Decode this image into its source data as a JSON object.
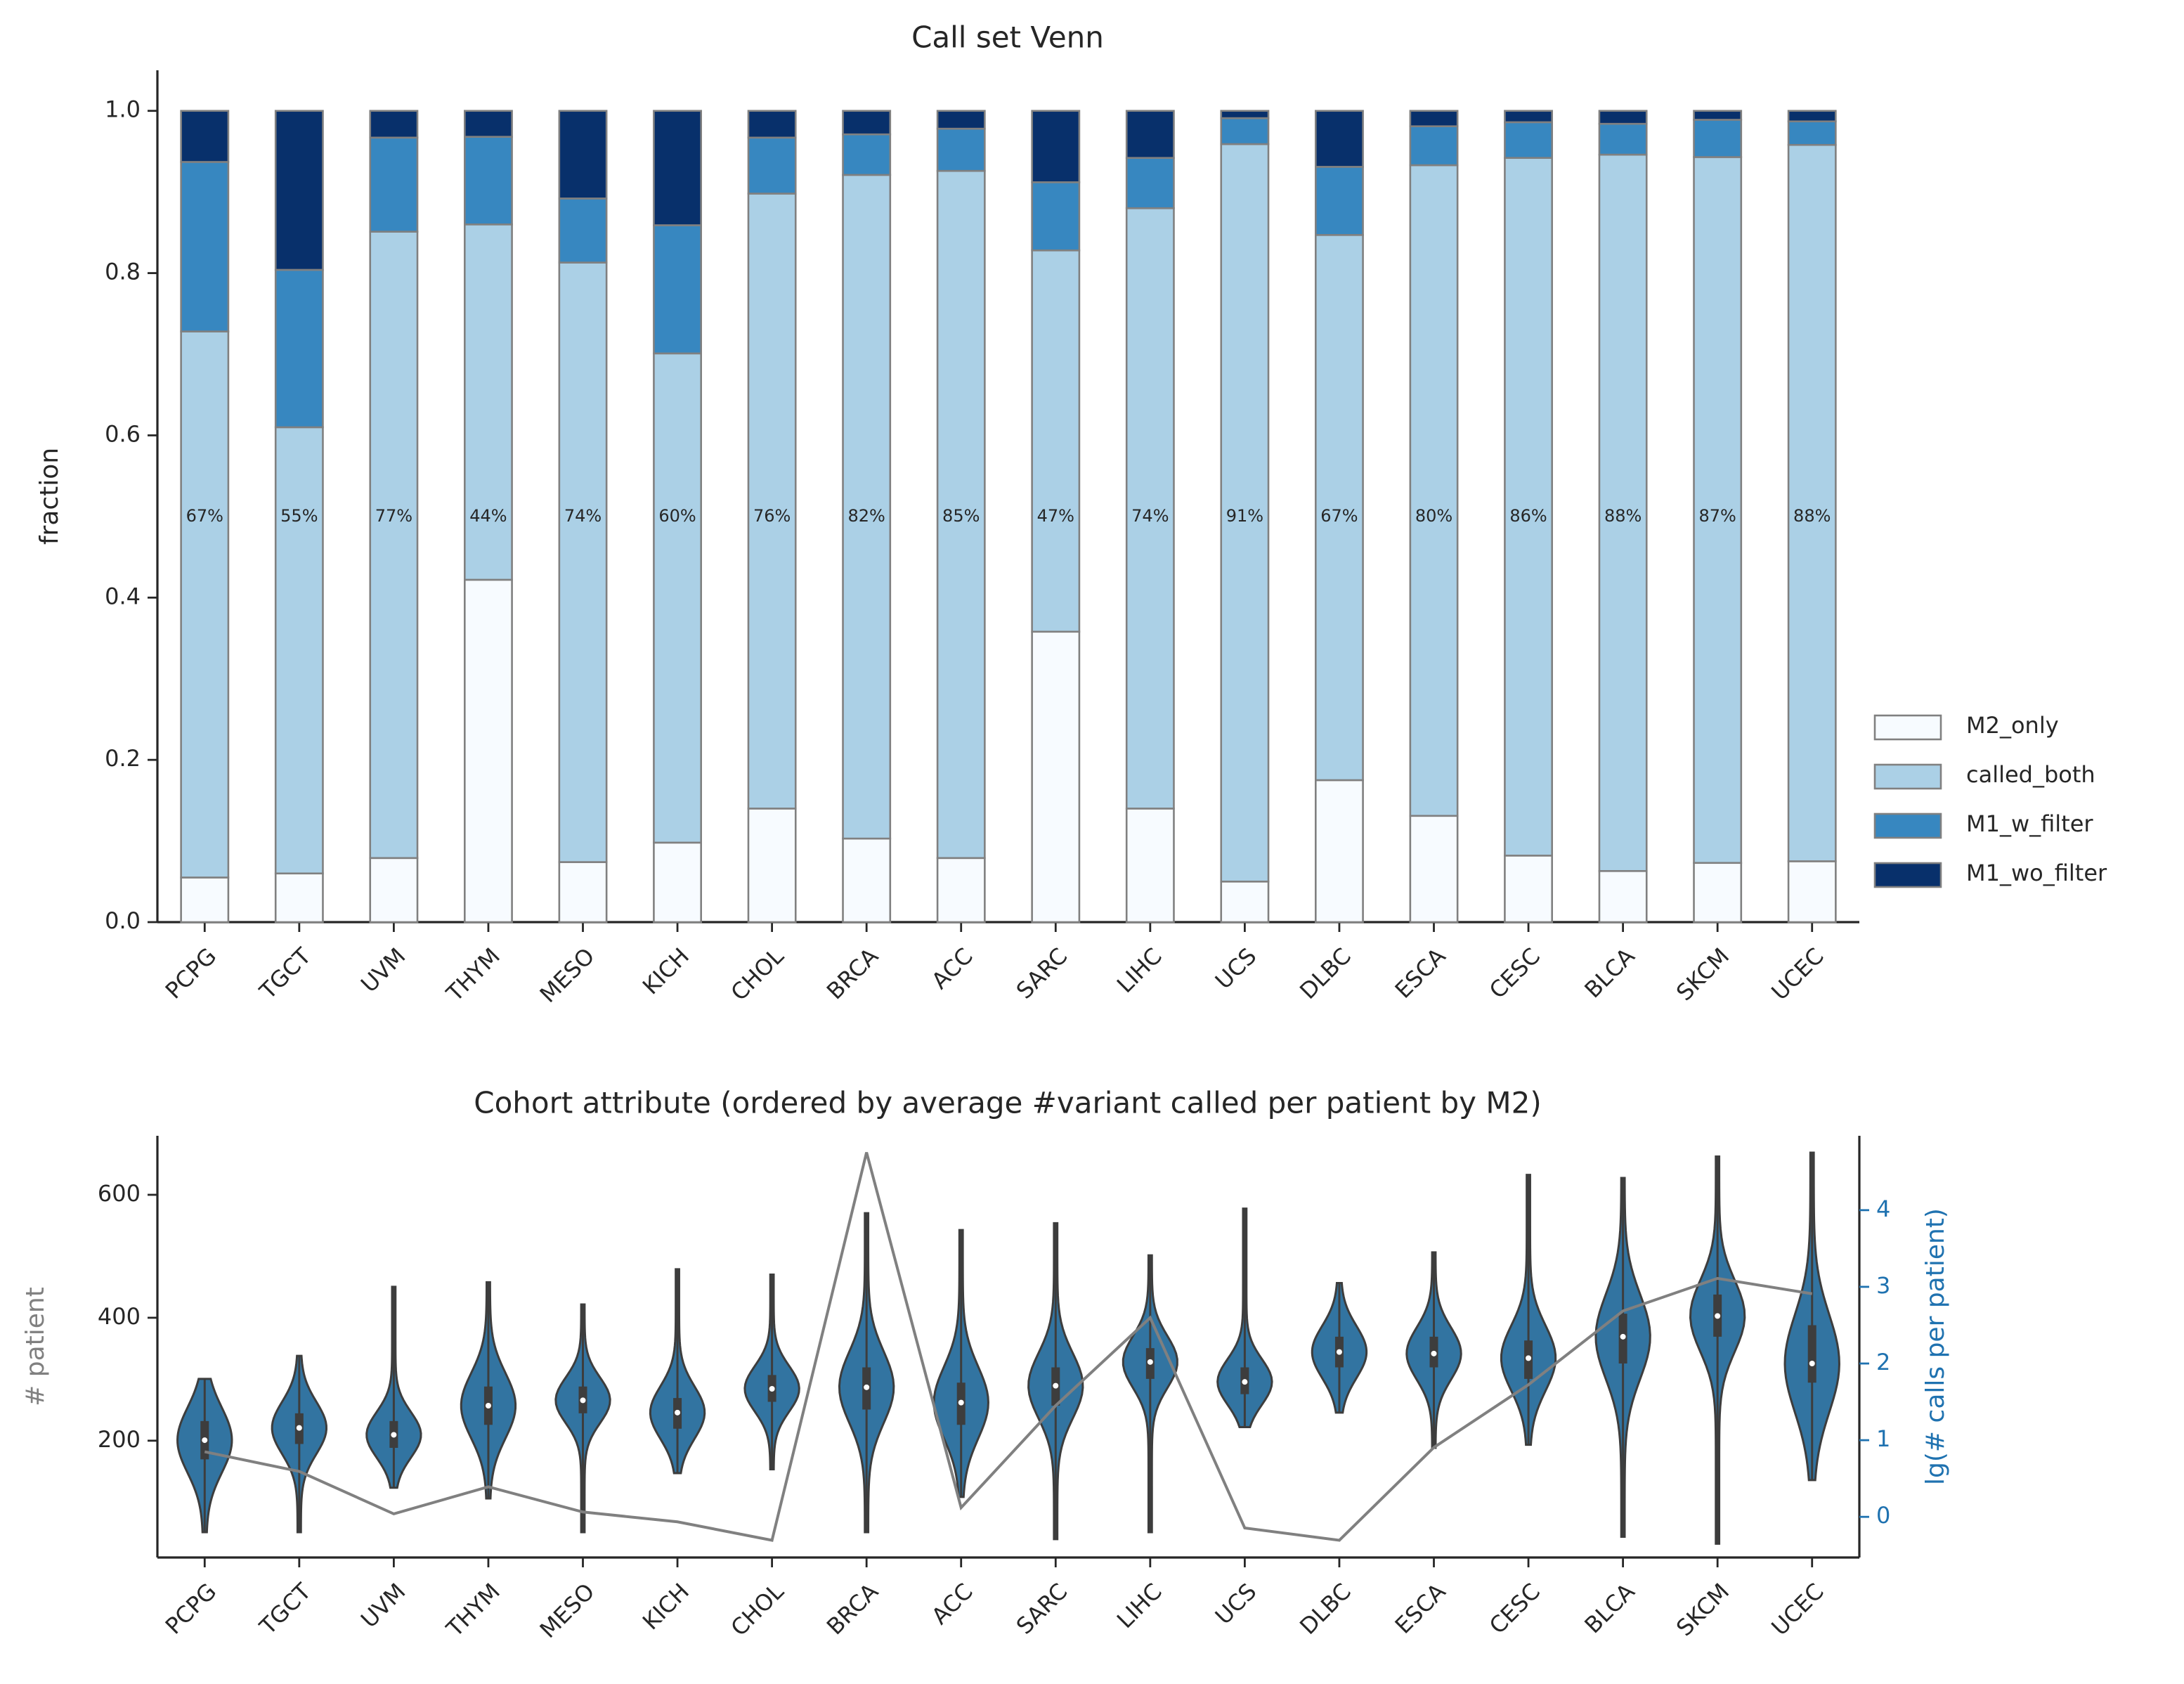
{
  "chart_data": [
    {
      "type": "bar",
      "stacked": true,
      "title": "Call set Venn",
      "ylabel": "fraction",
      "categories": [
        "PCPG",
        "TGCT",
        "UVM",
        "THYM",
        "MESO",
        "KICH",
        "CHOL",
        "BRCA",
        "ACC",
        "SARC",
        "LIHC",
        "UCS",
        "DLBC",
        "ESCA",
        "CESC",
        "BLCA",
        "SKCM",
        "UCEC"
      ],
      "series": [
        {
          "name": "M2_only",
          "color": "#f7fbff",
          "values": [
            0.055,
            0.06,
            0.079,
            0.422,
            0.074,
            0.098,
            0.14,
            0.103,
            0.079,
            0.358,
            0.14,
            0.05,
            0.175,
            0.131,
            0.082,
            0.063,
            0.073,
            0.075
          ]
        },
        {
          "name": "called_both",
          "color": "#abd0e6",
          "values": [
            0.673,
            0.55,
            0.772,
            0.438,
            0.739,
            0.603,
            0.758,
            0.818,
            0.847,
            0.47,
            0.74,
            0.909,
            0.672,
            0.802,
            0.86,
            0.883,
            0.87,
            0.883
          ],
          "value_labels": [
            "67%",
            "55%",
            "77%",
            "44%",
            "74%",
            "60%",
            "76%",
            "82%",
            "85%",
            "47%",
            "74%",
            "91%",
            "67%",
            "80%",
            "86%",
            "88%",
            "87%",
            "88%"
          ]
        },
        {
          "name": "M1_w_filter",
          "color": "#3787c0",
          "values": [
            0.209,
            0.194,
            0.116,
            0.108,
            0.079,
            0.158,
            0.069,
            0.05,
            0.052,
            0.084,
            0.062,
            0.032,
            0.084,
            0.048,
            0.044,
            0.038,
            0.046,
            0.029
          ]
        },
        {
          "name": "M1_wo_filter",
          "color": "#08306b",
          "values": [
            0.063,
            0.196,
            0.033,
            0.032,
            0.108,
            0.141,
            0.033,
            0.029,
            0.022,
            0.088,
            0.058,
            0.009,
            0.069,
            0.019,
            0.014,
            0.016,
            0.011,
            0.013
          ]
        }
      ],
      "edge_color": "#808080",
      "ylim": [
        0,
        1.05
      ],
      "yticks": [
        {
          "value": 0,
          "label": "0.0"
        },
        0.2,
        0.4,
        0.6,
        0.8,
        {
          "value": 1,
          "label": "1.0"
        }
      ],
      "legend": "right"
    },
    {
      "type": "violin",
      "title": "Cohort attribute (ordered by average #variant called per patient by M2)",
      "ylabel": "# patient",
      "y2label": "lg(# calls per patient)",
      "categories": [
        "PCPG",
        "TGCT",
        "UVM",
        "THYM",
        "MESO",
        "KICH",
        "CHOL",
        "BRCA",
        "ACC",
        "SARC",
        "LIHC",
        "UCS",
        "DLBC",
        "ESCA",
        "CESC",
        "BLCA",
        "SKCM",
        "UCEC"
      ],
      "line_color": "#808080",
      "line_values": [
        182,
        150,
        81,
        125,
        84,
        68,
        38,
        669,
        91,
        257,
        400,
        58,
        38,
        189,
        291,
        411,
        464,
        439
      ],
      "violin_color": "#3274a1",
      "violin_axis": "y2",
      "violin_stats": [
        {
          "min": -0.2,
          "q1": 0.75,
          "median": 1.0,
          "q3": 1.25,
          "max": 1.8
        },
        {
          "min": -0.2,
          "q1": 0.95,
          "median": 1.16,
          "q3": 1.35,
          "max": 2.1
        },
        {
          "min": 0.38,
          "q1": 0.9,
          "median": 1.07,
          "q3": 1.25,
          "max": 3.0
        },
        {
          "min": 0.24,
          "q1": 1.2,
          "median": 1.45,
          "q3": 1.7,
          "max": 3.06
        },
        {
          "min": -0.2,
          "q1": 1.35,
          "median": 1.52,
          "q3": 1.7,
          "max": 2.77
        },
        {
          "min": 0.57,
          "q1": 1.15,
          "median": 1.36,
          "q3": 1.55,
          "max": 3.23
        },
        {
          "min": 0.62,
          "q1": 1.5,
          "median": 1.67,
          "q3": 1.85,
          "max": 3.16
        },
        {
          "min": -0.2,
          "q1": 1.4,
          "median": 1.69,
          "q3": 1.95,
          "max": 3.96
        },
        {
          "min": 0.26,
          "q1": 1.2,
          "median": 1.49,
          "q3": 1.75,
          "max": 3.74
        },
        {
          "min": -0.29,
          "q1": 1.45,
          "median": 1.71,
          "q3": 1.95,
          "max": 3.83
        },
        {
          "min": -0.2,
          "q1": 1.8,
          "median": 2.02,
          "q3": 2.2,
          "max": 3.41
        },
        {
          "min": 1.17,
          "q1": 1.6,
          "median": 1.76,
          "q3": 1.95,
          "max": 4.02
        },
        {
          "min": 1.36,
          "q1": 1.95,
          "median": 2.15,
          "q3": 2.35,
          "max": 3.05
        },
        {
          "min": 0.9,
          "q1": 1.95,
          "median": 2.13,
          "q3": 2.35,
          "max": 3.45
        },
        {
          "min": 0.94,
          "q1": 1.8,
          "median": 2.07,
          "q3": 2.3,
          "max": 4.46
        },
        {
          "min": -0.26,
          "q1": 2.0,
          "median": 2.35,
          "q3": 2.65,
          "max": 4.42
        },
        {
          "min": -0.35,
          "q1": 2.35,
          "median": 2.62,
          "q3": 2.9,
          "max": 4.7
        },
        {
          "min": 0.48,
          "q1": 1.75,
          "median": 2.0,
          "q3": 2.5,
          "max": 4.75
        }
      ],
      "ylim": [
        10,
        696
      ],
      "yticks": [
        200,
        400,
        600
      ],
      "y2lim": [
        -0.53,
        4.97
      ],
      "y2ticks": [
        0,
        1,
        2,
        3,
        4
      ],
      "y2color": "#1f72b0"
    }
  ]
}
